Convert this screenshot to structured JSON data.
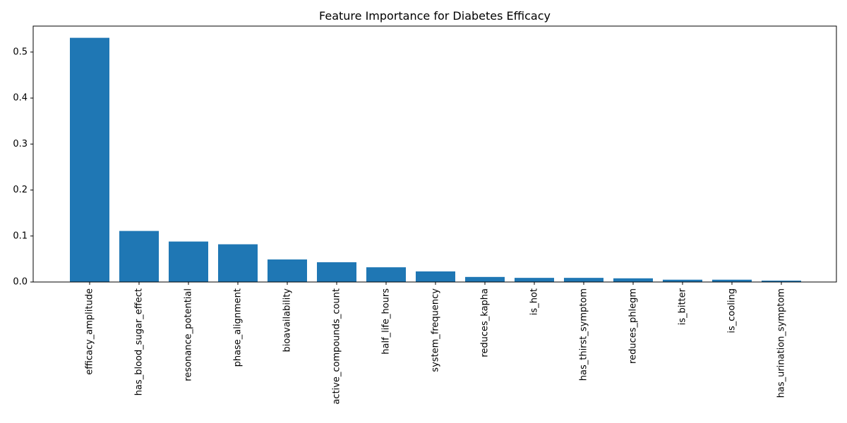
{
  "chart_data": {
    "type": "bar",
    "title": "Feature Importance for Diabetes Efficacy",
    "xlabel": "",
    "ylabel": "",
    "categories": [
      "efficacy_amplitude",
      "has_blood_sugar_effect",
      "resonance_potential",
      "phase_alignment",
      "bioavailability",
      "active_compounds_count",
      "half_life_hours",
      "system_frequency",
      "reduces_kapha",
      "is_hot",
      "has_thirst_symptom",
      "reduces_phlegm",
      "is_bitter",
      "is_cooling",
      "has_urination_symptom"
    ],
    "values": [
      0.531,
      0.111,
      0.088,
      0.082,
      0.049,
      0.043,
      0.032,
      0.023,
      0.011,
      0.009,
      0.009,
      0.008,
      0.005,
      0.005,
      0.003
    ],
    "ylim": [
      0,
      0.5565
    ],
    "yticks": [
      0.0,
      0.1,
      0.2,
      0.3,
      0.4,
      0.5
    ],
    "ytick_labels": [
      "0.0",
      "0.1",
      "0.2",
      "0.3",
      "0.4",
      "0.5"
    ],
    "bar_color": "#1f77b4",
    "grid": false,
    "legend": "none"
  }
}
